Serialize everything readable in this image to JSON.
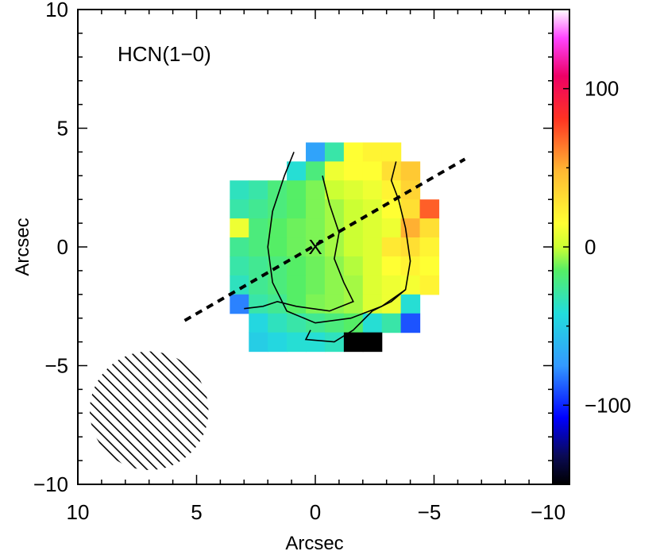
{
  "chart_data": {
    "type": "heatmap",
    "annotation": "HCN(1−0)",
    "xlabel": "Arcsec",
    "ylabel": "Arcsec",
    "xlim": [
      10,
      -10
    ],
    "ylim": [
      -10,
      10
    ],
    "x_ticks": [
      10,
      5,
      0,
      -5,
      -10
    ],
    "x_tick_labels": [
      "10",
      "5",
      "0",
      "−5",
      "−10"
    ],
    "y_ticks": [
      10,
      5,
      0,
      -5,
      -10
    ],
    "y_tick_labels": [
      "10",
      "5",
      "0",
      "−5",
      "−10"
    ],
    "colorbar": {
      "range": [
        -150,
        150
      ],
      "ticks": [
        100,
        0,
        -100
      ],
      "tick_labels": [
        "100",
        "0",
        "−100"
      ]
    },
    "center_marker": {
      "label": "X",
      "x": 0,
      "y": 0
    },
    "major_axis_line": {
      "x1": 5.5,
      "y1": -3.1,
      "x2": -6.3,
      "y2": 3.7,
      "style": "dashed"
    },
    "beam": {
      "x": 7.0,
      "y": -6.9,
      "radius": 2.5
    },
    "grid": {
      "x0": 3.6,
      "x_step": -0.8,
      "y0": 4.4,
      "y_step": -0.8,
      "rows": [
        [
          null,
          null,
          null,
          null,
          -70,
          -30,
          15,
          20,
          20,
          null,
          null
        ],
        [
          null,
          null,
          null,
          -40,
          -20,
          10,
          15,
          15,
          30,
          40,
          null
        ],
        [
          -35,
          -30,
          -20,
          -15,
          -10,
          0,
          5,
          10,
          20,
          35,
          null
        ],
        [
          -30,
          -25,
          -20,
          -15,
          -10,
          -5,
          0,
          5,
          15,
          30,
          70
        ],
        [
          10,
          -20,
          -15,
          -12,
          -10,
          -5,
          0,
          5,
          10,
          50,
          30
        ],
        [
          -25,
          -20,
          -15,
          -12,
          -10,
          -5,
          0,
          5,
          25,
          30,
          20
        ],
        [
          -30,
          -25,
          -20,
          -15,
          -12,
          -8,
          -3,
          5,
          15,
          20,
          15
        ],
        [
          -35,
          -25,
          -20,
          -15,
          -12,
          -8,
          -5,
          5,
          10,
          12,
          20
        ],
        [
          -80,
          -30,
          -25,
          -15,
          -10,
          -8,
          -5,
          5,
          10,
          -40,
          null
        ],
        [
          null,
          -45,
          -35,
          -30,
          -25,
          -20,
          -15,
          -40,
          -30,
          -90,
          null
        ],
        [
          null,
          -50,
          -45,
          -40,
          -40,
          -35,
          -150,
          -150,
          null,
          null,
          null
        ]
      ]
    },
    "contours": [
      [
        [
          0.9,
          4.0
        ],
        [
          1.3,
          3.0
        ],
        [
          1.8,
          1.5
        ],
        [
          2.0,
          0
        ],
        [
          1.8,
          -1.5
        ],
        [
          1.2,
          -2.7
        ],
        [
          0,
          -3.2
        ],
        [
          -1.5,
          -3.0
        ],
        [
          -2.8,
          -2.5
        ],
        [
          -3.8,
          -1.8
        ],
        [
          -4.0,
          -0.6
        ],
        [
          -3.8,
          0.8
        ],
        [
          -3.5,
          2.0
        ],
        [
          -3.2,
          2.8
        ],
        [
          -3.4,
          3.6
        ]
      ],
      [
        [
          -0.3,
          3.0
        ],
        [
          -0.6,
          1.8
        ],
        [
          -1.0,
          0.6
        ],
        [
          -0.8,
          -0.5
        ],
        [
          -1.2,
          -1.5
        ],
        [
          -1.6,
          -2.3
        ],
        [
          -0.6,
          -2.7
        ],
        [
          0.8,
          -2.5
        ],
        [
          1.6,
          -2.3
        ],
        [
          2.2,
          -2.5
        ],
        [
          3.0,
          -2.6
        ]
      ],
      [
        [
          0.2,
          -3.5
        ],
        [
          0.4,
          -3.9
        ],
        [
          -0.8,
          -4.0
        ],
        [
          -1.6,
          -3.5
        ],
        [
          -2.4,
          -2.7
        ],
        [
          -3.2,
          -2.3
        ],
        [
          -3.8,
          -1.8
        ]
      ]
    ]
  }
}
